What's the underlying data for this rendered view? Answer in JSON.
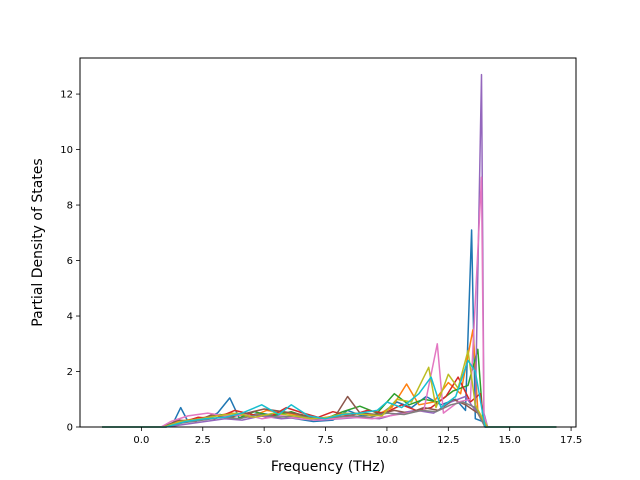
{
  "chart_data": {
    "type": "line",
    "title": "",
    "xlabel": "Frequency (THz)",
    "ylabel": "Partial Density of States",
    "xlim": [
      -2.5,
      17.7
    ],
    "ylim": [
      0,
      13.3
    ],
    "x_ticks": [
      0.0,
      2.5,
      5.0,
      7.5,
      10.0,
      12.5,
      15.0,
      17.5
    ],
    "x_tick_labels": [
      "0.0",
      "2.5",
      "5.0",
      "7.5",
      "10.0",
      "12.5",
      "15.0",
      "17.5"
    ],
    "y_ticks": [
      0,
      2,
      4,
      6,
      8,
      10,
      12
    ],
    "y_tick_labels": [
      "0",
      "2",
      "4",
      "6",
      "8",
      "10",
      "12"
    ],
    "grid": false,
    "legend": "none",
    "series_colors": [
      "#1f77b4",
      "#ff7f0e",
      "#2ca02c",
      "#d62728",
      "#9467bd",
      "#8c564b",
      "#e377c2",
      "#7f7f7f",
      "#bcbd22",
      "#17becf"
    ],
    "series": [
      {
        "color": "#1f77b4",
        "points": [
          [
            -1.6,
            0
          ],
          [
            0.8,
            0
          ],
          [
            1.3,
            0.15
          ],
          [
            1.6,
            0.7
          ],
          [
            1.9,
            0.2
          ],
          [
            2.6,
            0.3
          ],
          [
            3.1,
            0.5
          ],
          [
            3.6,
            1.05
          ],
          [
            4.0,
            0.3
          ],
          [
            4.8,
            0.5
          ],
          [
            5.6,
            0.4
          ],
          [
            6.3,
            0.3
          ],
          [
            7.0,
            0.2
          ],
          [
            7.8,
            0.25
          ],
          [
            8.4,
            0.6
          ],
          [
            9.0,
            0.4
          ],
          [
            9.8,
            0.5
          ],
          [
            10.4,
            0.9
          ],
          [
            11.0,
            0.7
          ],
          [
            11.6,
            1.1
          ],
          [
            12.2,
            0.8
          ],
          [
            12.8,
            1.0
          ],
          [
            13.2,
            0.6
          ],
          [
            13.45,
            7.1
          ],
          [
            13.6,
            0.3
          ],
          [
            13.9,
            0.2
          ],
          [
            14.1,
            0
          ],
          [
            16.9,
            0
          ]
        ]
      },
      {
        "color": "#ff7f0e",
        "points": [
          [
            -1.6,
            0
          ],
          [
            0.9,
            0
          ],
          [
            1.5,
            0.2
          ],
          [
            2.2,
            0.3
          ],
          [
            3.0,
            0.4
          ],
          [
            3.7,
            0.5
          ],
          [
            4.4,
            0.35
          ],
          [
            5.1,
            0.6
          ],
          [
            5.9,
            0.5
          ],
          [
            6.6,
            0.4
          ],
          [
            7.3,
            0.3
          ],
          [
            8.0,
            0.35
          ],
          [
            8.7,
            0.5
          ],
          [
            9.5,
            0.4
          ],
          [
            10.2,
            0.7
          ],
          [
            10.8,
            1.55
          ],
          [
            11.3,
            0.8
          ],
          [
            11.9,
            0.9
          ],
          [
            12.5,
            1.6
          ],
          [
            13.0,
            1.2
          ],
          [
            13.5,
            3.5
          ],
          [
            13.7,
            0.6
          ],
          [
            14.0,
            0
          ],
          [
            16.9,
            0
          ]
        ]
      },
      {
        "color": "#2ca02c",
        "points": [
          [
            -1.6,
            0
          ],
          [
            1.0,
            0
          ],
          [
            1.7,
            0.2
          ],
          [
            2.4,
            0.25
          ],
          [
            3.2,
            0.45
          ],
          [
            3.9,
            0.3
          ],
          [
            4.6,
            0.55
          ],
          [
            5.3,
            0.4
          ],
          [
            6.1,
            0.55
          ],
          [
            6.8,
            0.35
          ],
          [
            7.5,
            0.3
          ],
          [
            8.2,
            0.55
          ],
          [
            8.9,
            0.75
          ],
          [
            9.6,
            0.5
          ],
          [
            10.3,
            1.2
          ],
          [
            10.9,
            0.8
          ],
          [
            11.5,
            1.0
          ],
          [
            12.1,
            0.9
          ],
          [
            12.7,
            1.3
          ],
          [
            13.3,
            1.5
          ],
          [
            13.7,
            2.8
          ],
          [
            13.9,
            0.4
          ],
          [
            14.1,
            0
          ],
          [
            16.9,
            0
          ]
        ]
      },
      {
        "color": "#d62728",
        "points": [
          [
            -1.6,
            0
          ],
          [
            0.9,
            0
          ],
          [
            1.6,
            0.15
          ],
          [
            2.3,
            0.35
          ],
          [
            3.0,
            0.3
          ],
          [
            3.8,
            0.6
          ],
          [
            4.5,
            0.45
          ],
          [
            5.2,
            0.35
          ],
          [
            5.9,
            0.7
          ],
          [
            6.6,
            0.5
          ],
          [
            7.2,
            0.35
          ],
          [
            7.8,
            0.55
          ],
          [
            8.5,
            0.4
          ],
          [
            9.2,
            0.6
          ],
          [
            9.9,
            0.5
          ],
          [
            10.6,
            0.8
          ],
          [
            11.2,
            0.6
          ],
          [
            11.8,
            0.7
          ],
          [
            12.4,
            1.1
          ],
          [
            12.9,
            1.8
          ],
          [
            13.4,
            0.9
          ],
          [
            13.8,
            1.2
          ],
          [
            14.0,
            0
          ],
          [
            16.9,
            0
          ]
        ]
      },
      {
        "color": "#9467bd",
        "points": [
          [
            -1.6,
            0
          ],
          [
            1.0,
            0
          ],
          [
            1.8,
            0.1
          ],
          [
            2.6,
            0.2
          ],
          [
            3.4,
            0.3
          ],
          [
            4.1,
            0.25
          ],
          [
            4.9,
            0.4
          ],
          [
            5.7,
            0.3
          ],
          [
            6.5,
            0.35
          ],
          [
            7.3,
            0.25
          ],
          [
            8.1,
            0.3
          ],
          [
            8.9,
            0.35
          ],
          [
            9.7,
            0.3
          ],
          [
            10.5,
            0.5
          ],
          [
            11.2,
            0.6
          ],
          [
            11.9,
            0.5
          ],
          [
            12.6,
            0.9
          ],
          [
            13.2,
            1.1
          ],
          [
            13.6,
            0.6
          ],
          [
            13.85,
            12.7
          ],
          [
            13.95,
            0.5
          ],
          [
            14.1,
            0
          ],
          [
            16.9,
            0
          ]
        ]
      },
      {
        "color": "#8c564b",
        "points": [
          [
            -1.6,
            0
          ],
          [
            0.9,
            0
          ],
          [
            1.5,
            0.25
          ],
          [
            2.2,
            0.2
          ],
          [
            2.9,
            0.45
          ],
          [
            3.6,
            0.35
          ],
          [
            4.3,
            0.5
          ],
          [
            5.0,
            0.65
          ],
          [
            5.8,
            0.55
          ],
          [
            6.5,
            0.45
          ],
          [
            7.2,
            0.3
          ],
          [
            7.9,
            0.4
          ],
          [
            8.4,
            1.1
          ],
          [
            8.9,
            0.5
          ],
          [
            9.6,
            0.45
          ],
          [
            10.3,
            0.6
          ],
          [
            10.9,
            0.5
          ],
          [
            11.5,
            0.7
          ],
          [
            12.1,
            0.6
          ],
          [
            12.7,
            1.0
          ],
          [
            13.2,
            0.8
          ],
          [
            13.7,
            0.5
          ],
          [
            14.0,
            0
          ],
          [
            16.9,
            0
          ]
        ]
      },
      {
        "color": "#e377c2",
        "points": [
          [
            -1.6,
            0
          ],
          [
            0.8,
            0
          ],
          [
            1.2,
            0.2
          ],
          [
            1.9,
            0.4
          ],
          [
            2.7,
            0.5
          ],
          [
            3.4,
            0.4
          ],
          [
            4.2,
            0.45
          ],
          [
            4.9,
            0.3
          ],
          [
            5.7,
            0.4
          ],
          [
            6.4,
            0.3
          ],
          [
            7.1,
            0.25
          ],
          [
            7.9,
            0.3
          ],
          [
            8.6,
            0.35
          ],
          [
            9.4,
            0.3
          ],
          [
            10.1,
            0.4
          ],
          [
            10.8,
            0.5
          ],
          [
            11.5,
            0.6
          ],
          [
            12.05,
            3.0
          ],
          [
            12.3,
            0.5
          ],
          [
            12.9,
            0.9
          ],
          [
            13.4,
            1.0
          ],
          [
            13.85,
            9.0
          ],
          [
            13.95,
            0.4
          ],
          [
            14.1,
            0
          ],
          [
            16.9,
            0
          ]
        ]
      },
      {
        "color": "#7f7f7f",
        "points": [
          [
            -1.6,
            0
          ],
          [
            1.0,
            0
          ],
          [
            1.7,
            0.15
          ],
          [
            2.5,
            0.25
          ],
          [
            3.3,
            0.35
          ],
          [
            4.0,
            0.3
          ],
          [
            4.8,
            0.45
          ],
          [
            5.6,
            0.35
          ],
          [
            6.3,
            0.4
          ],
          [
            7.1,
            0.3
          ],
          [
            7.8,
            0.35
          ],
          [
            8.6,
            0.4
          ],
          [
            9.3,
            0.35
          ],
          [
            10.0,
            0.5
          ],
          [
            10.7,
            0.45
          ],
          [
            11.4,
            0.6
          ],
          [
            12.0,
            0.55
          ],
          [
            12.6,
            0.8
          ],
          [
            13.1,
            0.9
          ],
          [
            13.6,
            0.7
          ],
          [
            14.0,
            0
          ],
          [
            16.9,
            0
          ]
        ]
      },
      {
        "color": "#bcbd22",
        "points": [
          [
            -1.6,
            0
          ],
          [
            0.9,
            0
          ],
          [
            1.6,
            0.2
          ],
          [
            2.4,
            0.3
          ],
          [
            3.1,
            0.4
          ],
          [
            3.9,
            0.5
          ],
          [
            4.6,
            0.35
          ],
          [
            5.4,
            0.5
          ],
          [
            6.2,
            0.4
          ],
          [
            6.9,
            0.3
          ],
          [
            7.6,
            0.35
          ],
          [
            8.3,
            0.5
          ],
          [
            9.1,
            0.45
          ],
          [
            9.8,
            0.4
          ],
          [
            10.4,
            1.0
          ],
          [
            11.0,
            0.9
          ],
          [
            11.7,
            2.15
          ],
          [
            12.0,
            0.7
          ],
          [
            12.5,
            1.9
          ],
          [
            12.9,
            1.4
          ],
          [
            13.3,
            2.75
          ],
          [
            13.6,
            0.8
          ],
          [
            13.9,
            0.3
          ],
          [
            14.1,
            0
          ],
          [
            16.9,
            0
          ]
        ]
      },
      {
        "color": "#17becf",
        "points": [
          [
            -1.6,
            0
          ],
          [
            1.0,
            0
          ],
          [
            1.8,
            0.2
          ],
          [
            2.6,
            0.3
          ],
          [
            3.4,
            0.35
          ],
          [
            4.1,
            0.5
          ],
          [
            4.9,
            0.8
          ],
          [
            5.6,
            0.45
          ],
          [
            6.1,
            0.8
          ],
          [
            6.8,
            0.4
          ],
          [
            7.5,
            0.3
          ],
          [
            8.2,
            0.45
          ],
          [
            8.9,
            0.5
          ],
          [
            9.6,
            0.6
          ],
          [
            10.0,
            0.9
          ],
          [
            10.6,
            0.7
          ],
          [
            11.3,
            1.2
          ],
          [
            11.8,
            1.8
          ],
          [
            12.2,
            0.7
          ],
          [
            12.8,
            1.1
          ],
          [
            13.3,
            2.4
          ],
          [
            13.6,
            2.0
          ],
          [
            13.8,
            1.0
          ],
          [
            14.0,
            0
          ],
          [
            16.9,
            0
          ]
        ]
      }
    ]
  }
}
